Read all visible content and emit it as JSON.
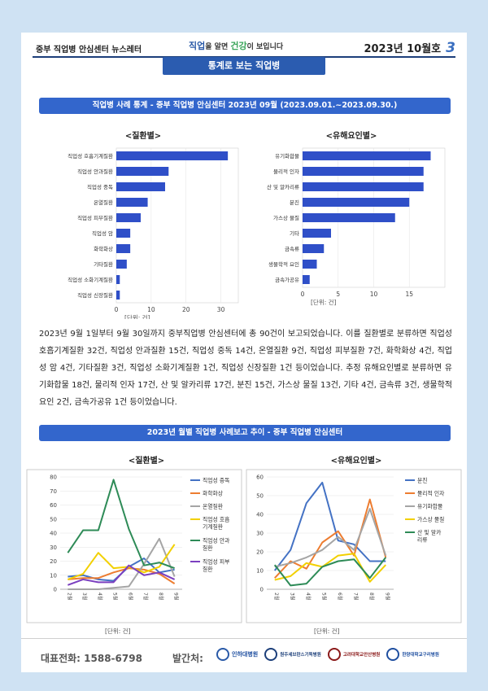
{
  "header": {
    "newsletter": "중부 직업병 안심센터 뉴스레터",
    "slogan_a": "직업",
    "slogan_b": "을 알면 ",
    "slogan_c": "건강",
    "slogan_d": "이 보입니다",
    "issue": "2023년 10월호",
    "page_no": "3"
  },
  "subtitle": "통계로 보는 직업병",
  "section1": {
    "title": "직업병 사례 통계 - 중부 직업병 안심센터   2023년 09월 (2023.09.01.~2023.09.30.)",
    "unit": "[단위: 건]"
  },
  "section2": {
    "title": "2023년 월별 직업병 사례보고 추이 - 중부 직업병 안심센터",
    "unit": "[단위: 건]"
  },
  "body_text": "2023년 9월 1일부터 9월 30일까지 중부직업병 안심센터에 총 90건이 보고되었습니다. 이를 질환별로 분류하면 직업성 호흡기계질환 32건, 직업성 안과질환 15건, 직업성 중독 14건, 온열질환 9건, 직업성 피부질환 7건, 화학화상 4건, 직업성 암 4건, 기타질환 3건, 직업성 소화기계질환 1건, 직업성 신장질환 1건 등이었습니다. 추정 유해요인별로 분류하면 유기화합물 18건, 물리적 인자 17건, 산 및 알카리류 17건, 분진 15건, 가스상 물질 13건, 기타 4건, 금속류 3건, 생물학적 요인 2건, 금속가공유 1건 등이었습니다.",
  "chart_data": [
    {
      "type": "bar",
      "orientation": "horizontal",
      "title": "<질환별>",
      "categories": [
        "직업성 호흡기계질환",
        "직업성 안과질환",
        "직업성 중독",
        "온열질환",
        "직업성 피부질환",
        "직업성 암",
        "화학화상",
        "기타질환",
        "직업성 소화기계질환",
        "직업성 신장질환"
      ],
      "values": [
        32,
        15,
        14,
        9,
        7,
        4,
        4,
        3,
        1,
        1
      ],
      "xlim": [
        0,
        35
      ],
      "ticks": [
        0,
        10,
        20,
        30
      ],
      "color": "#2f4fc8"
    },
    {
      "type": "bar",
      "orientation": "horizontal",
      "title": "<유해요인별>",
      "categories": [
        "유기화합물",
        "물리적 인자",
        "산 및 알카리류",
        "분진",
        "가스상 물질",
        "기타",
        "금속류",
        "생물학적 요인",
        "금속가공유"
      ],
      "values": [
        18,
        17,
        17,
        15,
        13,
        4,
        3,
        2,
        1
      ],
      "xlim": [
        0,
        20
      ],
      "ticks": [
        0,
        5,
        10,
        15
      ],
      "color": "#2f4fc8"
    },
    {
      "type": "line",
      "title": "<질환별>",
      "x": [
        "2월",
        "3월",
        "4월",
        "5월",
        "6월",
        "7월",
        "8월",
        "9월"
      ],
      "ylim": [
        0,
        80
      ],
      "yticks": [
        0,
        10,
        20,
        30,
        40,
        50,
        60,
        70,
        80
      ],
      "legend": "right",
      "series": [
        {
          "name": "직업성 중독",
          "color": "#4472c4",
          "values": [
            9,
            10,
            7,
            6,
            16,
            22,
            12,
            14
          ]
        },
        {
          "name": "화학화상",
          "color": "#ed7d31",
          "values": [
            7,
            8,
            8,
            12,
            15,
            14,
            11,
            4
          ]
        },
        {
          "name": "온열질환",
          "color": "#a5a5a5",
          "values": [
            0,
            0,
            0,
            1,
            2,
            18,
            36,
            9
          ]
        },
        {
          "name": "직업성 호흡기계질환",
          "color": "#f2d000",
          "values": [
            7,
            11,
            26,
            15,
            16,
            12,
            16,
            32
          ]
        },
        {
          "name": "직업성 안과질환",
          "color": "#2e8b57",
          "values": [
            26,
            42,
            42,
            78,
            43,
            17,
            19,
            15
          ]
        },
        {
          "name": "직업성 피부질환",
          "color": "#7b3fbf",
          "values": [
            3,
            7,
            5,
            5,
            17,
            10,
            12,
            7
          ]
        }
      ]
    },
    {
      "type": "line",
      "title": "<유해요인별>",
      "x": [
        "2월",
        "3월",
        "4월",
        "5월",
        "6월",
        "7월",
        "8월",
        "9월"
      ],
      "ylim": [
        0,
        60
      ],
      "yticks": [
        0,
        10,
        20,
        30,
        40,
        50,
        60
      ],
      "legend": "right",
      "series": [
        {
          "name": "분진",
          "color": "#4472c4",
          "values": [
            10,
            21,
            46,
            57,
            26,
            24,
            15,
            15
          ]
        },
        {
          "name": "물리적 인자",
          "color": "#ed7d31",
          "values": [
            6,
            15,
            11,
            25,
            31,
            18,
            48,
            17
          ]
        },
        {
          "name": "유기화합물",
          "color": "#a5a5a5",
          "values": [
            12,
            14,
            17,
            21,
            28,
            21,
            43,
            18
          ]
        },
        {
          "name": "가스상 물질",
          "color": "#f2d000",
          "values": [
            5,
            7,
            14,
            12,
            18,
            19,
            4,
            13
          ]
        },
        {
          "name": "산 및 알카리류",
          "color": "#2e8b57",
          "values": [
            13,
            2,
            3,
            12,
            15,
            16,
            6,
            17
          ]
        }
      ]
    }
  ],
  "footer": {
    "phone_label": "대표전화: ",
    "phone": "1588-6798",
    "publisher_label": "발간처:",
    "logos": [
      "인하대병원",
      "원주세브란스기독병원",
      "고려대학교안산병원",
      "한양대학교구리병원"
    ]
  }
}
